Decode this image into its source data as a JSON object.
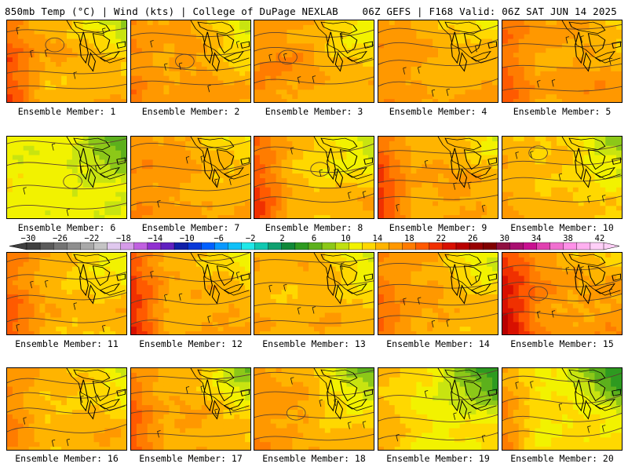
{
  "header": {
    "left": "850mb Temp (°C) | Wind (kts) | College of DuPage NEXLAB",
    "right": "06Z GEFS | F168 Valid: 06Z SAT JUN 14 2025"
  },
  "members": [
    {
      "label": "Ensemble Member: 1"
    },
    {
      "label": "Ensemble Member: 2"
    },
    {
      "label": "Ensemble Member: 3"
    },
    {
      "label": "Ensemble Member: 4"
    },
    {
      "label": "Ensemble Member: 5"
    },
    {
      "label": "Ensemble Member: 6"
    },
    {
      "label": "Ensemble Member: 7"
    },
    {
      "label": "Ensemble Member: 8"
    },
    {
      "label": "Ensemble Member: 9"
    },
    {
      "label": "Ensemble Member: 10"
    },
    {
      "label": "Ensemble Member: 11"
    },
    {
      "label": "Ensemble Member: 12"
    },
    {
      "label": "Ensemble Member: 13"
    },
    {
      "label": "Ensemble Member: 14"
    },
    {
      "label": "Ensemble Member: 15"
    },
    {
      "label": "Ensemble Member: 16"
    },
    {
      "label": "Ensemble Member: 17"
    },
    {
      "label": "Ensemble Member: 18"
    },
    {
      "label": "Ensemble Member: 19"
    },
    {
      "label": "Ensemble Member: 20"
    }
  ],
  "colorbar": {
    "ticks": [
      "−30",
      "−26",
      "−22",
      "−18",
      "−14",
      "−10",
      "−6",
      "−2",
      "2",
      "6",
      "10",
      "14",
      "18",
      "22",
      "26",
      "30",
      "34",
      "38",
      "42"
    ],
    "colors": [
      "#404040",
      "#5a5a5a",
      "#747474",
      "#8e8e8e",
      "#a8a8a8",
      "#c4c4c4",
      "#e0c8ee",
      "#d59be8",
      "#c060e0",
      "#9030d0",
      "#6020c0",
      "#1020a8",
      "#0838d8",
      "#0060ff",
      "#0898ff",
      "#10c0f8",
      "#20e8e8",
      "#10c8b0",
      "#10a070",
      "#108838",
      "#2e9a20",
      "#5cb01c",
      "#8cc818",
      "#c0e010",
      "#f2f200",
      "#ffd800",
      "#ffb400",
      "#ff9800",
      "#ff7c00",
      "#ff5a00",
      "#f03000",
      "#d81000",
      "#b80000",
      "#980000",
      "#800000",
      "#901040",
      "#a81070",
      "#c81090",
      "#e040b0",
      "#f070d0",
      "#ff90e8",
      "#ffb0f0",
      "#ffd0f8"
    ]
  }
}
